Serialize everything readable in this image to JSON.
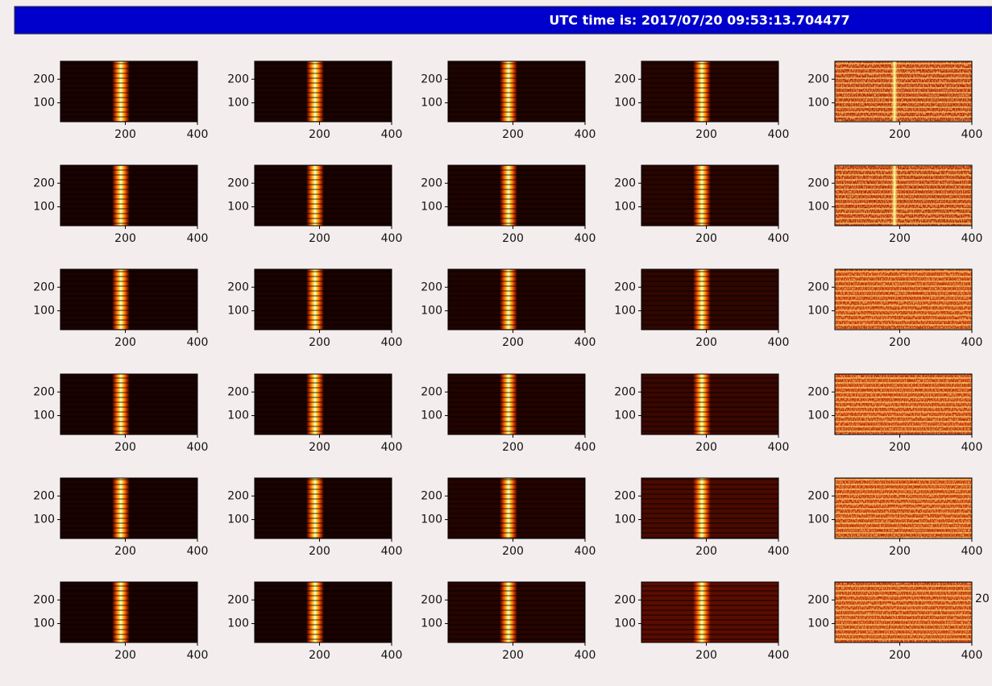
{
  "header": {
    "text": "UTC time is: 2017/07/20 09:53:13.704477"
  },
  "panels": {
    "xlim": [
      20,
      400
    ],
    "ylim": [
      20,
      276
    ],
    "xticks": [
      200,
      400
    ],
    "yticks": [
      100,
      200
    ]
  },
  "overflow_text": "20"
}
